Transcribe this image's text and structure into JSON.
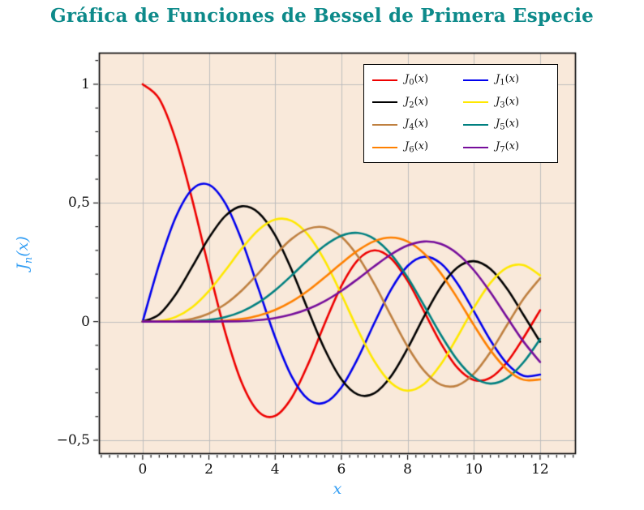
{
  "title": "Gráfica de Funciones de Bessel de Primera Especie",
  "title_color": "#0d8a8a",
  "chart_data": {
    "type": "line",
    "title": "Gráfica de Funciones de Bessel de Primera Especie",
    "xlabel": "x",
    "ylabel": "J_n(x)",
    "ylabel_parts": {
      "base": "J",
      "sub": "n",
      "open": "(",
      "var": "x",
      "close": ")"
    },
    "axis_label_color": "#359ff4",
    "plot_bg": "#f9e9da",
    "grid_color": "#bdbdbd",
    "grid": true,
    "legend_position": "top-right",
    "xlim": [
      -1.32,
      13.08
    ],
    "ylim": [
      -0.558,
      1.133
    ],
    "xticks": {
      "values": [
        0,
        2,
        4,
        6,
        8,
        10,
        12
      ],
      "labels": [
        "0",
        "2",
        "4",
        "6",
        "8",
        "10",
        "12"
      ]
    },
    "yticks": {
      "values": [
        1,
        0.5,
        0,
        -0.5
      ],
      "labels": [
        "1",
        "0,5",
        "0",
        "−0,5"
      ]
    },
    "minor_x_step": 0.25,
    "minor_y_step": 0.1,
    "x": [
      0,
      0.5,
      1,
      1.5,
      2,
      2.5,
      3,
      3.5,
      4,
      4.5,
      5,
      5.5,
      6,
      6.5,
      7,
      7.5,
      8,
      8.5,
      9,
      9.5,
      10,
      10.5,
      11,
      11.5,
      12
    ],
    "series": [
      {
        "name": "J0",
        "base": "J",
        "sub": "0",
        "open": "(",
        "var": "x",
        "close": ")",
        "color": "#ee0000",
        "values": [
          1,
          0.9385,
          0.7652,
          0.5118,
          0.2239,
          -0.0484,
          -0.2601,
          -0.3801,
          -0.3971,
          -0.3205,
          -0.1776,
          -0.0068,
          0.1506,
          0.2601,
          0.3001,
          0.2663,
          0.1717,
          0.0419,
          -0.0903,
          -0.1939,
          -0.2459,
          -0.2366,
          -0.1712,
          -0.0677,
          0.0477
        ]
      },
      {
        "name": "J1",
        "base": "J",
        "sub": "1",
        "open": "(",
        "var": "x",
        "close": ")",
        "color": "#0000ee",
        "values": [
          0,
          0.2423,
          0.4401,
          0.5579,
          0.5767,
          0.4971,
          0.3391,
          0.1374,
          -0.066,
          -0.2311,
          -0.3276,
          -0.3414,
          -0.2767,
          -0.1538,
          -0.0047,
          0.1352,
          0.2346,
          0.2731,
          0.2453,
          0.1613,
          0.0435,
          -0.0789,
          -0.1768,
          -0.2284,
          -0.2234
        ]
      },
      {
        "name": "J2",
        "base": "J",
        "sub": "2",
        "open": "(",
        "var": "x",
        "close": ")",
        "color": "#000000",
        "values": [
          0,
          0.0306,
          0.1149,
          0.2321,
          0.3528,
          0.4461,
          0.4861,
          0.4586,
          0.3641,
          0.2178,
          0.0466,
          -0.1173,
          -0.2429,
          -0.3074,
          -0.3014,
          -0.2303,
          -0.113,
          0.0223,
          0.1448,
          0.2279,
          0.2546,
          0.2216,
          0.139,
          0.028,
          -0.0849
        ]
      },
      {
        "name": "J3",
        "base": "J",
        "sub": "3",
        "open": "(",
        "var": "x",
        "close": ")",
        "color": "#ffe800",
        "values": [
          0,
          0.0026,
          0.0196,
          0.061,
          0.1289,
          0.2166,
          0.3091,
          0.3868,
          0.4302,
          0.4247,
          0.3648,
          0.2561,
          0.1148,
          -0.0353,
          -0.1676,
          -0.2581,
          -0.2911,
          -0.2626,
          -0.1809,
          -0.0653,
          0.0584,
          0.1633,
          0.2273,
          0.2381,
          0.1951
        ]
      },
      {
        "name": "J4",
        "base": "J",
        "sub": "4",
        "open": "(",
        "var": "x",
        "close": ")",
        "color": "#bf8040",
        "values": [
          0,
          0.0002,
          0.0025,
          0.0118,
          0.034,
          0.0738,
          0.132,
          0.2044,
          0.2811,
          0.3485,
          0.3912,
          0.3967,
          0.3576,
          0.2748,
          0.1578,
          0.0238,
          -0.1054,
          -0.2077,
          -0.2655,
          -0.2691,
          -0.2196,
          -0.1283,
          -0.015,
          0.0962,
          0.1825
        ]
      },
      {
        "name": "J5",
        "base": "J",
        "sub": "5",
        "open": "(",
        "var": "x",
        "close": ")",
        "color": "#008080",
        "values": [
          0,
          0,
          0.0002,
          0.0018,
          0.007,
          0.0195,
          0.043,
          0.0804,
          0.1321,
          0.1947,
          0.2611,
          0.3209,
          0.3621,
          0.3735,
          0.3479,
          0.2835,
          0.1858,
          0.0671,
          -0.055,
          -0.1613,
          -0.2341,
          -0.2611,
          -0.2383,
          -0.1712,
          -0.0735
        ]
      },
      {
        "name": "J6",
        "base": "J",
        "sub": "6",
        "open": "(",
        "var": "x",
        "close": ")",
        "color": "#ff8000",
        "values": [
          0,
          0,
          0,
          0.0002,
          0.0012,
          0.0042,
          0.0114,
          0.0254,
          0.0491,
          0.0843,
          0.131,
          0.1868,
          0.2458,
          0.2999,
          0.3392,
          0.3542,
          0.3376,
          0.2866,
          0.2043,
          0.0993,
          -0.0145,
          -0.1203,
          -0.2016,
          -0.245,
          -0.2437
        ]
      },
      {
        "name": "J7",
        "base": "J",
        "sub": "7",
        "open": "(",
        "var": "x",
        "close": ")",
        "color": "#760d9b",
        "values": [
          0,
          0,
          0,
          0,
          0.0002,
          0.0008,
          0.0025,
          0.0067,
          0.0152,
          0.0304,
          0.0534,
          0.0866,
          0.1296,
          0.1801,
          0.2336,
          0.2832,
          0.3206,
          0.3376,
          0.3275,
          0.2868,
          0.2167,
          0.1236,
          0.0184,
          -0.0845,
          -0.1703
        ]
      }
    ]
  }
}
